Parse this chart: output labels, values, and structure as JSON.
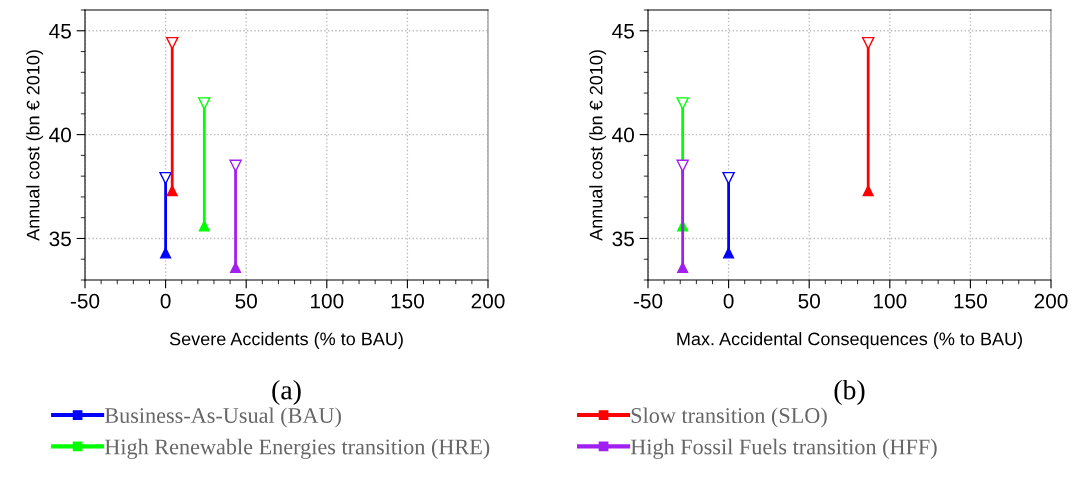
{
  "chart_data": [
    {
      "type": "line",
      "xlabel": "Severe Accidents (% to BAU)",
      "ylabel": "Annual cost (bn € 2010)",
      "annotations": [
        "(a)"
      ],
      "xlim": [
        -50,
        200
      ],
      "xticks": [
        -50,
        0,
        50,
        100,
        150,
        200
      ],
      "ylim": [
        33,
        46
      ],
      "yticks": [
        35,
        40,
        45
      ],
      "grid": true,
      "marker": "triangle",
      "legend": "bottom",
      "series": [
        {
          "name": "Business-As-Usual (BAU)",
          "color": "#0000ff",
          "x": [
            0,
            0
          ],
          "values": [
            34.3,
            37.9
          ]
        },
        {
          "name": "Slow transition (SLO)",
          "color": "#ff0000",
          "x": [
            4.1,
            4.1
          ],
          "values": [
            37.3,
            44.4
          ]
        },
        {
          "name": "High Renewable Energies transition (HRE)",
          "color": "#00ff00",
          "x": [
            24,
            24
          ],
          "values": [
            35.6,
            41.5
          ]
        },
        {
          "name": "High Fossil Fuels transition (HFF)",
          "color": "#a020f0",
          "x": [
            43.4,
            43.4
          ],
          "values": [
            33.6,
            38.5
          ]
        }
      ]
    },
    {
      "type": "line",
      "xlabel": "Max. Accidental Consequences (% to BAU)",
      "ylabel": "Annual cost (bn € 2010)",
      "annotations": [
        "(b)"
      ],
      "xlim": [
        -50,
        200
      ],
      "xticks": [
        -50,
        0,
        50,
        100,
        150,
        200
      ],
      "ylim": [
        33,
        46
      ],
      "yticks": [
        35,
        40,
        45
      ],
      "grid": true,
      "marker": "triangle",
      "series": [
        {
          "color": "#0000ff",
          "x": [
            0,
            0
          ],
          "values": [
            34.3,
            37.9
          ]
        },
        {
          "color": "#ff0000",
          "x": [
            86.6,
            86.6
          ],
          "values": [
            37.3,
            44.4
          ]
        },
        {
          "color": "#00ff00",
          "x": [
            -28.5,
            -28.5
          ],
          "values": [
            35.6,
            41.5
          ]
        },
        {
          "color": "#a020f0",
          "x": [
            -28.5,
            -28.5
          ],
          "values": [
            33.6,
            38.5
          ]
        }
      ]
    }
  ]
}
